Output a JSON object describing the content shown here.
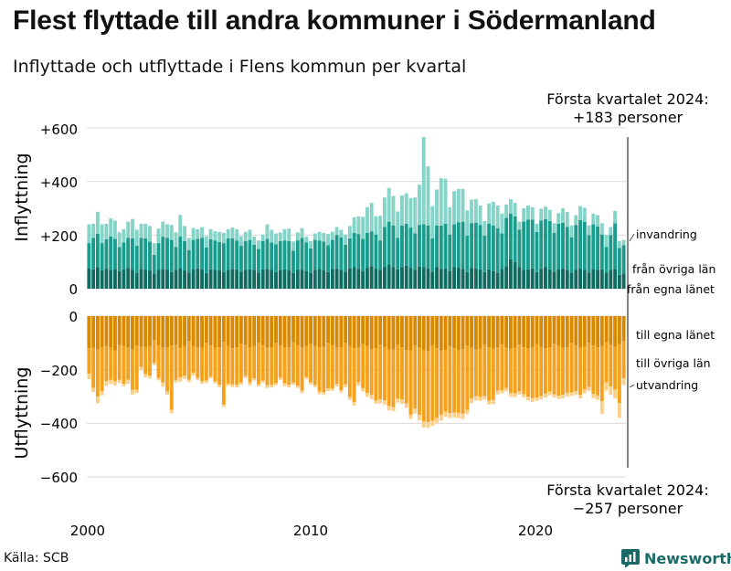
{
  "title": "Flest flyttade till andra kommuner i Södermanland",
  "subtitle": "Inflyttade och utflyttade i Flens kommun per kvartal",
  "source": "Källa: SCB",
  "brand": "Newsworthy",
  "colors": {
    "in_egna": "#0f6b60",
    "in_ovriga": "#1a9c8c",
    "in_invandring": "#86d4c8",
    "ut_egna": "#d98800",
    "ut_ovriga": "#f5a11e",
    "ut_utvandring": "#fbd08a",
    "brand": "#1a6b68"
  },
  "chart_data": {
    "type": "bar",
    "stacked": true,
    "x_ticks": [
      "2000",
      "2010",
      "2020"
    ],
    "top_panel": {
      "ylabel": "Inflyttning",
      "ylim": [
        0,
        600
      ],
      "y_ticks": [
        "0",
        "+200",
        "+400",
        "+600"
      ],
      "annotation_line1": "Första kvartalet 2024:",
      "annotation_line2": "+183 personer",
      "series": [
        {
          "name": "från egna länet",
          "values": [
            75,
            72,
            80,
            68,
            76,
            70,
            74,
            65,
            72,
            78,
            70,
            60,
            74,
            72,
            68,
            56,
            70,
            74,
            72,
            62,
            70,
            75,
            68,
            60,
            74,
            76,
            72,
            58,
            72,
            70,
            68,
            62,
            70,
            74,
            72,
            64,
            70,
            72,
            70,
            60,
            72,
            74,
            70,
            62,
            70,
            72,
            68,
            58,
            72,
            70,
            66,
            60,
            70,
            74,
            68,
            62,
            74,
            76,
            70,
            64,
            76,
            80,
            74,
            66,
            78,
            84,
            76,
            70,
            80,
            90,
            80,
            72,
            80,
            86,
            78,
            70,
            82,
            80,
            76,
            64,
            80,
            74,
            76,
            66,
            80,
            78,
            74,
            62,
            78,
            76,
            72,
            62,
            72,
            66,
            60,
            74,
            84,
            110,
            100,
            80,
            70,
            72,
            76,
            62,
            74,
            80,
            72,
            64,
            72,
            76,
            70,
            60,
            70,
            76,
            70,
            60,
            74,
            70,
            72,
            60,
            70,
            74,
            52,
            56
          ]
        },
        {
          "name": "från övriga län",
          "values": [
            95,
            118,
            125,
            102,
            108,
            125,
            112,
            90,
            100,
            112,
            118,
            100,
            116,
            116,
            108,
            70,
            100,
            120,
            118,
            120,
            86,
            120,
            110,
            84,
            108,
            110,
            118,
            96,
            112,
            110,
            106,
            108,
            118,
            114,
            108,
            96,
            108,
            110,
            94,
            88,
            106,
            112,
            102,
            104,
            108,
            108,
            110,
            84,
            108,
            120,
            106,
            90,
            112,
            106,
            108,
            100,
            108,
            124,
            122,
            100,
            112,
            128,
            130,
            120,
            130,
            130,
            126,
            110,
            150,
            160,
            156,
            118,
            156,
            156,
            150,
            136,
            156,
            160,
            160,
            124,
            156,
            162,
            166,
            136,
            160,
            170,
            176,
            136,
            166,
            170,
            166,
            136,
            170,
            170,
            166,
            132,
            180,
            170,
            170,
            140,
            180,
            186,
            182,
            150,
            180,
            180,
            180,
            144,
            170,
            170,
            160,
            132,
            168,
            180,
            180,
            140,
            166,
            162,
            130,
            96,
            130,
            170,
            100,
            106
          ]
        },
        {
          "name": "invandring",
          "values": [
            70,
            52,
            82,
            70,
            58,
            67,
            68,
            55,
            50,
            60,
            72,
            60,
            52,
            54,
            58,
            44,
            54,
            56,
            50,
            56,
            54,
            80,
            56,
            45,
            44,
            36,
            40,
            42,
            38,
            34,
            38,
            38,
            34,
            40,
            42,
            36,
            34,
            38,
            30,
            32,
            24,
            54,
            48,
            40,
            32,
            42,
            46,
            34,
            30,
            36,
            22,
            28,
            24,
            32,
            32,
            42,
            30,
            30,
            28,
            38,
            46,
            58,
            66,
            82,
            96,
            106,
            68,
            92,
            110,
            126,
            110,
            98,
            112,
            114,
            110,
            134,
            150,
            326,
            220,
            120,
            134,
            176,
            168,
            102,
            124,
            124,
            122,
            94,
            88,
            88,
            72,
            54,
            76,
            88,
            84,
            74,
            50,
            54,
            50,
            30,
            50,
            52,
            46,
            30,
            44,
            46,
            42,
            36,
            40,
            54,
            56,
            44,
            36,
            52,
            52,
            36,
            40,
            42,
            42,
            44,
            30,
            46,
            26,
            20
          ]
        }
      ]
    },
    "bottom_panel": {
      "ylabel": "Utflyttning",
      "ylim": [
        -600,
        0
      ],
      "y_ticks": [
        "0",
        "−200",
        "−400",
        "−600"
      ],
      "annotation_line1": "Första kvartalet 2024:",
      "annotation_line2": "−257 personer",
      "series": [
        {
          "name": "till egna länet",
          "values": [
            -120,
            -118,
            -125,
            -115,
            -112,
            -118,
            -128,
            -108,
            -112,
            -118,
            -125,
            -110,
            -114,
            -116,
            -112,
            -90,
            -110,
            -118,
            -116,
            -110,
            -108,
            -118,
            -112,
            -92,
            -112,
            -116,
            -118,
            -100,
            -110,
            -118,
            -116,
            -96,
            -112,
            -120,
            -116,
            -102,
            -108,
            -118,
            -112,
            -100,
            -110,
            -118,
            -116,
            -100,
            -110,
            -116,
            -116,
            -98,
            -110,
            -118,
            -112,
            -102,
            -112,
            -116,
            -114,
            -100,
            -110,
            -118,
            -116,
            -100,
            -112,
            -120,
            -118,
            -104,
            -112,
            -124,
            -120,
            -106,
            -114,
            -124,
            -124,
            -108,
            -116,
            -126,
            -128,
            -110,
            -118,
            -128,
            -130,
            -110,
            -120,
            -128,
            -126,
            -112,
            -120,
            -126,
            -124,
            -110,
            -118,
            -124,
            -122,
            -108,
            -116,
            -122,
            -118,
            -106,
            -118,
            -122,
            -118,
            -106,
            -116,
            -120,
            -116,
            -104,
            -114,
            -120,
            -116,
            -102,
            -112,
            -118,
            -116,
            -100,
            -110,
            -118,
            -114,
            -100,
            -110,
            -116,
            -112,
            -98,
            -108,
            -114,
            -104,
            -92
          ]
        },
        {
          "name": "till övriga län",
          "values": [
            -95,
            -150,
            -175,
            -165,
            -130,
            -120,
            -115,
            -130,
            -140,
            -120,
            -150,
            -165,
            -75,
            -100,
            -110,
            -85,
            -120,
            -130,
            -165,
            -240,
            -130,
            -110,
            -110,
            -145,
            -100,
            -115,
            -125,
            -140,
            -115,
            -125,
            -140,
            -235,
            -140,
            -135,
            -140,
            -145,
            -115,
            -130,
            -120,
            -155,
            -130,
            -140,
            -140,
            -150,
            -120,
            -135,
            -140,
            -150,
            -150,
            -160,
            -115,
            -145,
            -145,
            -165,
            -170,
            -170,
            -160,
            -135,
            -160,
            -155,
            -190,
            -200,
            -130,
            -165,
            -175,
            -170,
            -195,
            -205,
            -200,
            -210,
            -215,
            -200,
            -195,
            -200,
            -240,
            -235,
            -250,
            -265,
            -265,
            -280,
            -260,
            -240,
            -230,
            -250,
            -240,
            -235,
            -240,
            -240,
            -190,
            -175,
            -180,
            -190,
            -200,
            -190,
            -160,
            -170,
            -150,
            -165,
            -170,
            -175,
            -175,
            -180,
            -190,
            -200,
            -185,
            -170,
            -165,
            -190,
            -185,
            -175,
            -170,
            -185,
            -170,
            -175,
            -160,
            -165,
            -180,
            -180,
            -205,
            -150,
            -155,
            -160,
            -220,
            -140
          ]
        },
        {
          "name": "utvandring",
          "values": [
            -20,
            -15,
            -25,
            -15,
            -18,
            -15,
            -15,
            -12,
            -10,
            -14,
            -18,
            -12,
            -14,
            -12,
            -10,
            -8,
            -10,
            -15,
            -12,
            -12,
            -10,
            -16,
            -12,
            -10,
            -10,
            -8,
            -10,
            -10,
            -8,
            -8,
            -10,
            -8,
            -8,
            -10,
            -10,
            -8,
            -8,
            -10,
            -8,
            -8,
            -8,
            -10,
            -10,
            -8,
            -8,
            -10,
            -10,
            -8,
            -8,
            -10,
            -8,
            -8,
            -8,
            -10,
            -10,
            -10,
            -8,
            -10,
            -10,
            -10,
            -10,
            -14,
            -12,
            -12,
            -14,
            -16,
            -12,
            -14,
            -16,
            -18,
            -16,
            -14,
            -16,
            -16,
            -16,
            -18,
            -20,
            -22,
            -22,
            -20,
            -20,
            -22,
            -20,
            -18,
            -18,
            -20,
            -20,
            -16,
            -16,
            -16,
            -14,
            -14,
            -14,
            -16,
            -14,
            -12,
            -12,
            -14,
            -14,
            -12,
            -12,
            -14,
            -14,
            -12,
            -12,
            -14,
            -14,
            -12,
            -12,
            -14,
            -14,
            -12,
            -14,
            -14,
            -14,
            -14,
            -16,
            -16,
            -48,
            -30,
            -30,
            -32,
            -56,
            -25
          ]
        }
      ]
    }
  }
}
